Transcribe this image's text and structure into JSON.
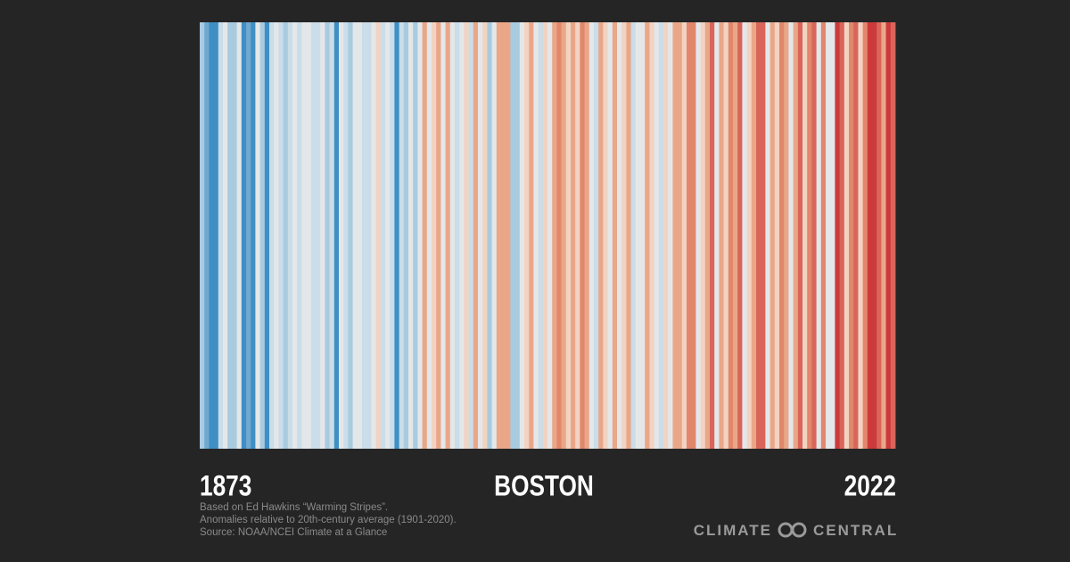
{
  "chart_data": {
    "type": "stripes",
    "title": "BOSTON",
    "x_labels": [
      "1873",
      "2022"
    ],
    "colors": [
      "#a8cbe0",
      "#6fa9d0",
      "#3f8fc5",
      "#3f8fc5",
      "#cadde8",
      "#e4e7e9",
      "#a8cbe0",
      "#a8cbe0",
      "#e4e7e9",
      "#3f8fc5",
      "#6fa9d0",
      "#3f8fc5",
      "#e4e7e9",
      "#a8cbe0",
      "#3f8fc5",
      "#cadde8",
      "#e4e7e9",
      "#cadde8",
      "#a8cbe0",
      "#cadde8",
      "#e4e7e9",
      "#cadde8",
      "#e4e7e9",
      "#e4e7e9",
      "#cadde8",
      "#cadde8",
      "#e4e7e9",
      "#a8cbe0",
      "#cadde8",
      "#3f8fc5",
      "#e4e7e9",
      "#cadde8",
      "#a8cbe0",
      "#e4e7e9",
      "#e4e7e9",
      "#cadde8",
      "#cadde8",
      "#e4e7e9",
      "#f2d3c2",
      "#cadde8",
      "#e4e7e9",
      "#cadde8",
      "#3f8fc5",
      "#cadde8",
      "#a8cbe0",
      "#e4e7e9",
      "#a8cbe0",
      "#e4e7e9",
      "#eaa788",
      "#e4e7e9",
      "#f2d3c2",
      "#eaa788",
      "#e4e7e9",
      "#eaa788",
      "#e4e7e9",
      "#cadde8",
      "#e4e7e9",
      "#f2d3c2",
      "#cadde8",
      "#eaa788",
      "#e4e7e9",
      "#f2d3c2",
      "#a8cbe0",
      "#e4e7e9",
      "#eaa788",
      "#eaa788",
      "#eaa788",
      "#a8cbe0",
      "#a8cbe0",
      "#e4e7e9",
      "#f2d3c2",
      "#eaa788",
      "#e4e7e9",
      "#cadde8",
      "#f2d3c2",
      "#e4e7e9",
      "#eaa788",
      "#e2876b",
      "#eaa788",
      "#f2d3c2",
      "#eaa788",
      "#f2d3c2",
      "#e2876b",
      "#eaa788",
      "#e4e7e9",
      "#cadde8",
      "#eaa788",
      "#f2d3c2",
      "#e4e7e9",
      "#eaa788",
      "#e4e7e9",
      "#f2d3c2",
      "#eaa788",
      "#cadde8",
      "#e4e7e9",
      "#e4e7e9",
      "#eaa788",
      "#f2d3c2",
      "#e4e7e9",
      "#cadde8",
      "#f2d3c2",
      "#e4e7e9",
      "#eaa788",
      "#eaa788",
      "#f2d3c2",
      "#e2876b",
      "#e2876b",
      "#e4e7e9",
      "#f2d3c2",
      "#eaa788",
      "#d9655a",
      "#e4e7e9",
      "#eaa788",
      "#f2d3c2",
      "#e2876b",
      "#eaa788",
      "#d9655a",
      "#e4e7e9",
      "#f2d3c2",
      "#eaa788",
      "#d9655a",
      "#d9655a",
      "#e4e7e9",
      "#eaa788",
      "#f2d3c2",
      "#e2876b",
      "#eaa788",
      "#e4e7e9",
      "#eaa788",
      "#d9655a",
      "#f2d3c2",
      "#e2876b",
      "#d9655a",
      "#e4e7e9",
      "#e2876b",
      "#e4e7e9",
      "#e4e7e9",
      "#cc3a3c",
      "#d9655a",
      "#f2d3c2",
      "#e2876b",
      "#d9655a",
      "#f2d3c2",
      "#e2876b",
      "#cc3a3c",
      "#cc3a3c",
      "#d9655a",
      "#eaa788",
      "#cc3a3c",
      "#d9655a"
    ],
    "notes": [
      "Based on Ed Hawkins “Warming Stripes”.",
      "Anomalies relative to 20th-century average (1901-2020).",
      "Source: NOAA/NCEI Climate at a Glance"
    ],
    "logo": [
      "CLIMATE",
      "CENTRAL"
    ]
  }
}
